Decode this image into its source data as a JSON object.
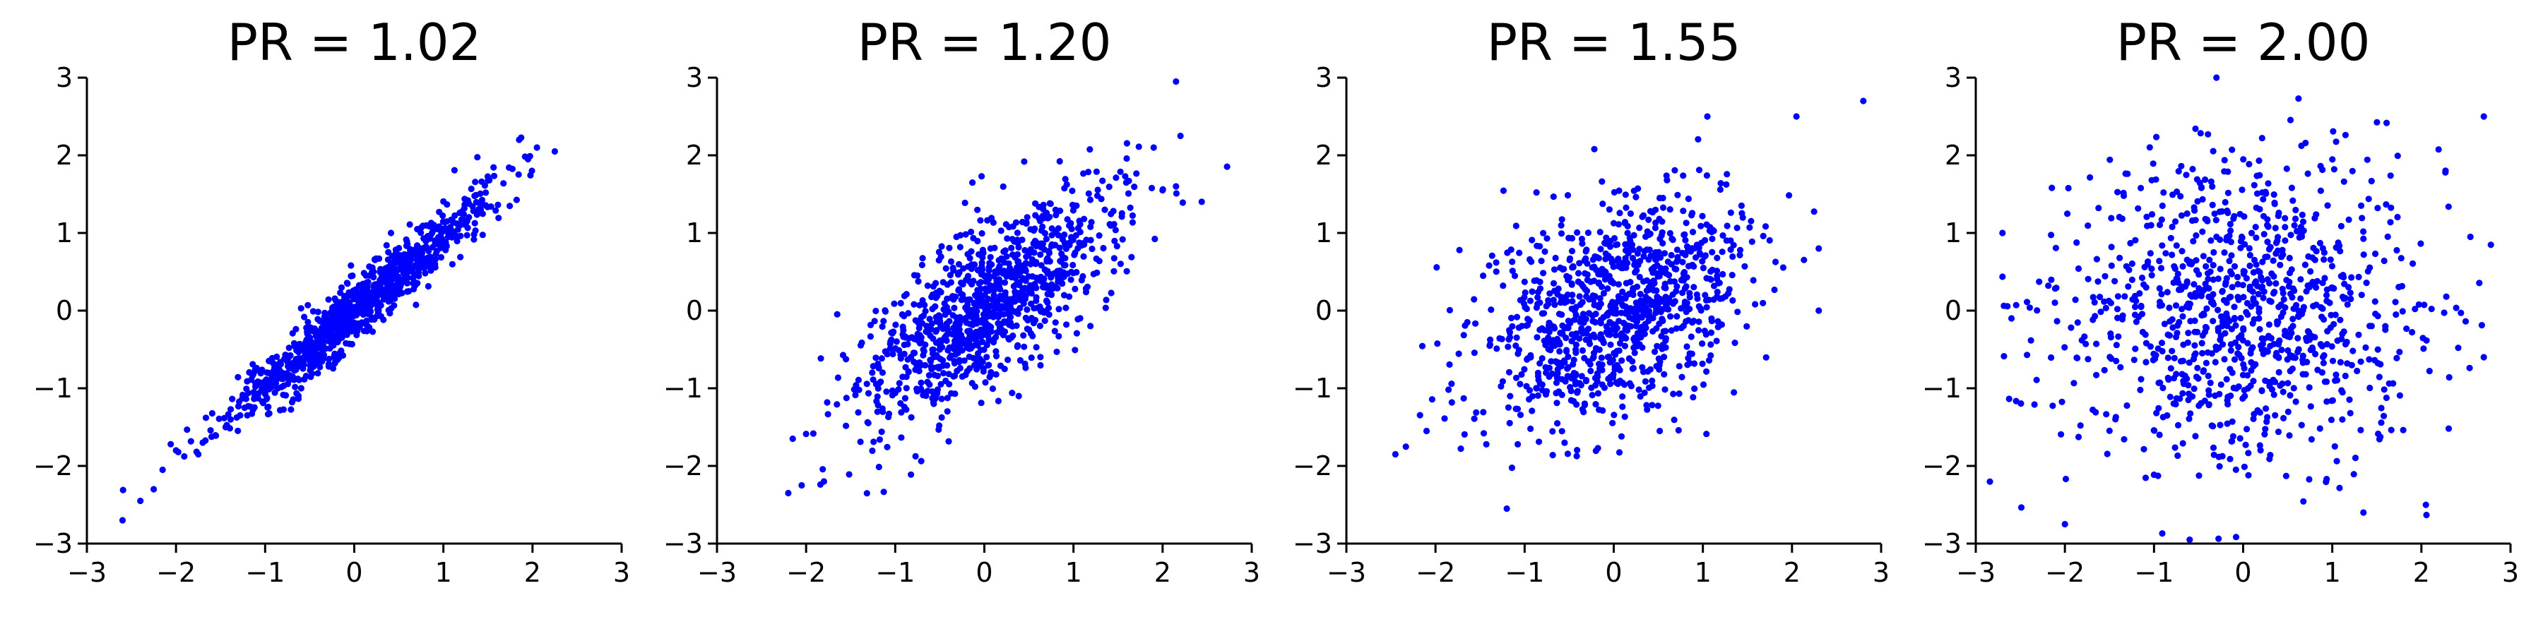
{
  "figure": {
    "background": "#ffffff",
    "marker_color": "#0000ff"
  },
  "chart_data": [
    {
      "type": "scatter",
      "title": "PR = 1.02",
      "xlabel": "",
      "ylabel": "",
      "xlim": [
        -3,
        3
      ],
      "ylim": [
        -3,
        3
      ],
      "xticks": [
        "−3",
        "−2",
        "−1",
        "0",
        "1",
        "2",
        "3"
      ],
      "yticks": [
        "−3",
        "−2",
        "−1",
        "0",
        "1",
        "2",
        "3"
      ],
      "grid": false,
      "spines": "left-bottom",
      "marker_color": "#0000ff",
      "sampling": {
        "n": 1000,
        "pc1_sd": 1.0,
        "pc2_sd": 0.14,
        "angle_deg": 45,
        "seed": 11
      },
      "points": [
        [
          -2.6,
          -2.7
        ],
        [
          -2.4,
          -2.45
        ],
        [
          -2.25,
          -2.3
        ],
        [
          -2.15,
          -2.05
        ],
        [
          -2.0,
          -1.8
        ],
        [
          1.85,
          2.2
        ],
        [
          2.05,
          2.1
        ],
        [
          2.25,
          2.05
        ],
        [
          1.95,
          1.95
        ],
        [
          -1.75,
          -1.85
        ],
        [
          -1.7,
          -1.7
        ]
      ]
    },
    {
      "type": "scatter",
      "title": "PR = 1.20",
      "xlabel": "",
      "ylabel": "",
      "xlim": [
        -3,
        3
      ],
      "ylim": [
        -3,
        3
      ],
      "xticks": [
        "−3",
        "−2",
        "−1",
        "0",
        "1",
        "2",
        "3"
      ],
      "yticks": [
        "−3",
        "−2",
        "−1",
        "0",
        "1",
        "2",
        "3"
      ],
      "grid": false,
      "spines": "left-bottom",
      "marker_color": "#0000ff",
      "sampling": {
        "n": 1000,
        "pc1_sd": 0.95,
        "pc2_sd": 0.38,
        "angle_deg": 45,
        "seed": 23
      },
      "points": [
        [
          -2.2,
          -2.35
        ],
        [
          -2.05,
          -2.25
        ],
        [
          -2.15,
          -1.65
        ],
        [
          2.15,
          2.95
        ],
        [
          2.2,
          2.25
        ],
        [
          2.15,
          1.6
        ],
        [
          1.9,
          2.1
        ],
        [
          -1.8,
          -2.2
        ],
        [
          2.0,
          1.55
        ]
      ]
    },
    {
      "type": "scatter",
      "title": "PR = 1.55",
      "xlabel": "",
      "ylabel": "",
      "xlim": [
        -3,
        3
      ],
      "ylim": [
        -3,
        3
      ],
      "xticks": [
        "−3",
        "−2",
        "−1",
        "0",
        "1",
        "2",
        "3"
      ],
      "yticks": [
        "−3",
        "−2",
        "−1",
        "0",
        "1",
        "2",
        "3"
      ],
      "grid": false,
      "spines": "left-bottom",
      "marker_color": "#0000ff",
      "sampling": {
        "n": 1000,
        "pc1_sd": 0.86,
        "pc2_sd": 0.58,
        "angle_deg": 45,
        "seed": 37
      },
      "points": [
        [
          -2.45,
          -1.85
        ],
        [
          2.8,
          2.7
        ],
        [
          2.05,
          2.5
        ],
        [
          2.3,
          0.0
        ],
        [
          -1.2,
          -2.55
        ],
        [
          2.3,
          0.8
        ],
        [
          1.05,
          2.5
        ],
        [
          -2.1,
          -1.55
        ]
      ]
    },
    {
      "type": "scatter",
      "title": "PR = 2.00",
      "xlabel": "",
      "ylabel": "",
      "xlim": [
        -3,
        3
      ],
      "ylim": [
        -3,
        3
      ],
      "xticks": [
        "−3",
        "−2",
        "−1",
        "0",
        "1",
        "2",
        "3"
      ],
      "yticks": [
        "−3",
        "−2",
        "−1",
        "0",
        "1",
        "2",
        "3"
      ],
      "grid": false,
      "spines": "left-bottom",
      "marker_color": "#0000ff",
      "sampling": {
        "n": 1000,
        "pc1_sd": 1.0,
        "pc2_sd": 1.0,
        "angle_deg": 0,
        "seed": 53
      },
      "points": [
        [
          -2.0,
          -2.75
        ],
        [
          -0.6,
          -2.95
        ],
        [
          2.7,
          2.5
        ],
        [
          -0.3,
          3.0
        ],
        [
          -2.7,
          1.0
        ],
        [
          2.7,
          -0.6
        ],
        [
          1.35,
          -2.6
        ],
        [
          -2.6,
          -0.1
        ],
        [
          2.55,
          0.95
        ]
      ]
    }
  ]
}
